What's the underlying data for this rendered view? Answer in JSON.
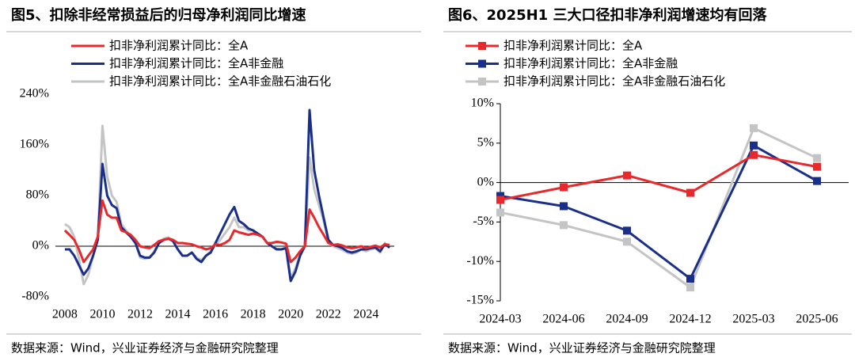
{
  "chart_data": [
    {
      "type": "line",
      "title": "图5、扣除非经常损益后的归母净利润同比增速",
      "source": "数据来源：Wind，兴业证券经济与金融研究院整理",
      "x": [
        2008,
        2008.25,
        2008.5,
        2008.75,
        2009,
        2009.25,
        2009.5,
        2009.75,
        2010,
        2010.25,
        2010.5,
        2010.75,
        2011,
        2011.25,
        2011.5,
        2011.75,
        2012,
        2012.25,
        2012.5,
        2012.75,
        2013,
        2013.25,
        2013.5,
        2013.75,
        2014,
        2014.25,
        2014.5,
        2014.75,
        2015,
        2015.25,
        2015.5,
        2015.75,
        2016,
        2016.25,
        2016.5,
        2016.75,
        2017,
        2017.25,
        2017.5,
        2017.75,
        2018,
        2018.25,
        2018.5,
        2018.75,
        2019,
        2019.25,
        2019.5,
        2019.75,
        2020,
        2020.25,
        2020.5,
        2020.75,
        2021,
        2021.25,
        2021.5,
        2021.75,
        2022,
        2022.25,
        2022.5,
        2022.75,
        2023,
        2023.25,
        2023.5,
        2023.75,
        2024,
        2024.25,
        2024.5,
        2024.75,
        2025,
        2025.25
      ],
      "series": [
        {
          "name": "扣非净利润累计同比：全A",
          "color": "#e8282b",
          "values": [
            25,
            18,
            10,
            -5,
            -25,
            -15,
            -5,
            15,
            72,
            50,
            45,
            45,
            25,
            22,
            18,
            10,
            0,
            -2,
            -3,
            2,
            8,
            10,
            12,
            10,
            5,
            5,
            4,
            3,
            0,
            -2,
            -5,
            -3,
            3,
            2,
            5,
            10,
            25,
            22,
            20,
            18,
            20,
            18,
            15,
            5,
            5,
            7,
            6,
            4,
            -25,
            -18,
            -8,
            0,
            58,
            45,
            30,
            18,
            5,
            2,
            3,
            1,
            -2,
            -3,
            -2,
            0,
            -3,
            -1,
            1,
            -2,
            3,
            2
          ]
        },
        {
          "name": "扣非净利润累计同比：全A非金融",
          "color": "#1a2f8a",
          "values": [
            -5,
            -5,
            -15,
            -30,
            -45,
            -35,
            -15,
            10,
            130,
            80,
            65,
            60,
            30,
            22,
            15,
            5,
            -15,
            -18,
            -18,
            -10,
            5,
            10,
            12,
            8,
            -5,
            -15,
            -15,
            -10,
            -20,
            -25,
            -15,
            -10,
            5,
            20,
            35,
            50,
            62,
            40,
            35,
            28,
            25,
            20,
            15,
            5,
            0,
            -5,
            -5,
            -3,
            -55,
            -40,
            -15,
            0,
            215,
            120,
            80,
            45,
            10,
            2,
            0,
            -3,
            -8,
            -10,
            -8,
            -5,
            -5,
            -3,
            -2,
            -8,
            3,
            -2
          ]
        },
        {
          "name": "扣非净利润累计同比：全A非金融石油石化",
          "color": "#c4c4c4",
          "values": [
            35,
            30,
            15,
            -20,
            -60,
            -45,
            -15,
            10,
            190,
            110,
            80,
            70,
            35,
            25,
            15,
            5,
            -18,
            -20,
            -18,
            -8,
            5,
            12,
            14,
            8,
            -5,
            -15,
            -15,
            -10,
            -18,
            -22,
            -15,
            -8,
            2,
            10,
            20,
            30,
            45,
            30,
            30,
            25,
            25,
            18,
            15,
            5,
            0,
            -4,
            -5,
            -2,
            -50,
            -35,
            -12,
            0,
            140,
            90,
            65,
            40,
            8,
            0,
            -3,
            -6,
            -10,
            -12,
            -10,
            -5,
            -8,
            -5,
            -3,
            -10,
            5,
            -3
          ]
        }
      ],
      "xlim": [
        2007.5,
        2025.5
      ],
      "xticks": [
        2008,
        2010,
        2012,
        2014,
        2016,
        2018,
        2020,
        2022,
        2024
      ],
      "ylim": [
        -80,
        240
      ],
      "yticks": [
        {
          "value": -80,
          "label": "-80%"
        },
        {
          "value": 0,
          "label": "0%"
        },
        {
          "value": 80,
          "label": "80%"
        },
        {
          "value": 160,
          "label": "160%"
        },
        {
          "value": 240,
          "label": "240%"
        }
      ],
      "legend": "top-left"
    },
    {
      "type": "line",
      "title": "图6、2025H1 三大口径扣非净利润增速均有回落",
      "source": "数据来源：Wind，兴业证券经济与金融研究院整理",
      "categories": [
        "2024-03",
        "2024-06",
        "2024-09",
        "2024-12",
        "2025-03",
        "2025-06"
      ],
      "series": [
        {
          "name": "扣非净利润累计同比：全A",
          "color": "#e8282b",
          "values": [
            -2.2,
            -0.6,
            0.9,
            -1.3,
            3.5,
            2.0
          ]
        },
        {
          "name": "扣非净利润累计同比：全A非金融",
          "color": "#1a2f8a",
          "values": [
            -1.7,
            -3.0,
            -6.1,
            -12.2,
            4.7,
            0.2
          ]
        },
        {
          "name": "扣非净利润累计同比：全A非金融石油石化",
          "color": "#c4c4c4",
          "values": [
            -3.8,
            -5.4,
            -7.5,
            -13.3,
            6.9,
            3.1
          ]
        }
      ],
      "ylim": [
        -15,
        10
      ],
      "yticks": [
        {
          "value": -15,
          "label": "-15%"
        },
        {
          "value": -10,
          "label": "-10%"
        },
        {
          "value": -5,
          "label": "-5%"
        },
        {
          "value": 0,
          "label": "0%"
        },
        {
          "value": 5,
          "label": "5%"
        },
        {
          "value": 10,
          "label": "10%"
        }
      ],
      "markers": "square",
      "legend": "top-left"
    }
  ]
}
